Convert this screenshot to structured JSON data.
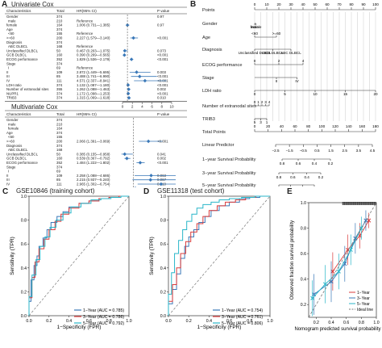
{
  "colors": {
    "blue": "#3a78b8",
    "red": "#d93b3b",
    "cyan": "#29b6c9",
    "grey": "#777777",
    "dash": "#9aa0a6"
  },
  "panels": {
    "A": {
      "letter": "A",
      "univariate": {
        "title": "Univariate Cox",
        "headers": [
          "Characteristics",
          "Total",
          "HR(95% CI)",
          "P value"
        ],
        "rows": [
          [
            "Gender",
            "374",
            "",
            "0.97"
          ],
          [
            "male",
            "210",
            "Reference",
            ""
          ],
          [
            "female",
            "164",
            "1.006 (0.731—1.385)",
            "0.97"
          ],
          [
            "Age",
            "374",
            "",
            ""
          ],
          [
            "<60",
            "155",
            "Reference",
            ""
          ],
          [
            ">=60",
            "200",
            "2.227 (1.579—3.140)",
            "<0.001"
          ],
          [
            "Diagnosis",
            "374",
            "",
            ""
          ],
          [
            "ABC DLBCL",
            "168",
            "Reference",
            ""
          ],
          [
            "Unclassified DLBCL",
            "50",
            "0.467 (0.203—1.075)",
            "0.073"
          ],
          [
            "GCB DLBCL",
            "160",
            "0.390 (0.269—0.565)",
            "<0.001"
          ],
          [
            "ECOG performance",
            "352",
            "1.829 (1.536—2.179)",
            "<0.001"
          ],
          [
            "Stage",
            "374",
            "",
            ""
          ],
          [
            "I",
            "69",
            "Reference",
            ""
          ],
          [
            "II",
            "109",
            "2.872 (1.449—5.695)",
            "0.003"
          ],
          [
            "III",
            "85",
            "3.488 (1.741—6.990)",
            "<0.001"
          ],
          [
            "IV",
            "111",
            "4.571 (2.337—8.941)",
            "<0.001"
          ],
          [
            "LDH ratio",
            "374",
            "1.132 (1.087—1.180)",
            "<0.001"
          ],
          [
            "Number of extranodal sites",
            "355",
            "1.262 (1.088—1.463)",
            "0.002"
          ],
          [
            "NUPR1",
            "374",
            "1.172 (1.098—1.253)",
            "<0.001"
          ],
          [
            "TRIB3",
            "374",
            "1.315 (1.069—1.618)",
            "0.010"
          ]
        ],
        "axis_ticks": [
          "0",
          "2",
          "4",
          "6",
          "8",
          "10"
        ]
      },
      "multivariate": {
        "title": "Multivariate Cox",
        "headers": [
          "Characteristics",
          "Total",
          "HR(95% CI)",
          "P value"
        ],
        "rows": [
          [
            "Gender",
            "374",
            "",
            ""
          ],
          [
            "male",
            "210",
            "",
            ""
          ],
          [
            "female",
            "164",
            "",
            ""
          ],
          [
            "Age",
            "374",
            "",
            ""
          ],
          [
            "<60",
            "155",
            "",
            ""
          ],
          [
            ">=60",
            "200",
            "2.066 (1.391—3.069)",
            "<0.001"
          ],
          [
            "Diagnosis",
            "374",
            "",
            ""
          ],
          [
            "ABC DLBCL",
            "168",
            "",
            ""
          ],
          [
            "Unclassified DLBCL",
            "50",
            "0.385 (0.155—0.958)",
            "0.041"
          ],
          [
            "GCB DLBCL",
            "160",
            "0.539 (0.367—0.792)",
            "0.002"
          ],
          [
            "ECOG performance",
            "352",
            "1.484 (1.222—1.802)",
            "<0.001"
          ],
          [
            "Stage",
            "374",
            "",
            ""
          ],
          [
            "I",
            "69",
            "",
            ""
          ],
          [
            "II",
            "109",
            "2.258 (1.088—4.686)",
            "0.063"
          ],
          [
            "III",
            "85",
            "2.215 (0.937—5.240)",
            "0.067"
          ],
          [
            "IV",
            "111",
            "2.965 (1.302—6.754)",
            "0.010"
          ],
          [
            "LDH ratio",
            "374",
            "1.138 (1.052—1.230)",
            "0.001"
          ],
          [
            "Number of extranodal sites",
            "",
            "",
            ""
          ],
          [
            "NUPR1",
            "374",
            "",
            ""
          ],
          [
            "TRIB3",
            "374",
            "",
            ""
          ]
        ],
        "axis_ticks": [
          "1",
          "2",
          "3"
        ]
      }
    },
    "B": {
      "letter": "B",
      "rows": [
        "Points",
        "Gender",
        "Age",
        "Diagnosis",
        "ECOG performance",
        "Stage",
        "LDH ratio",
        "Number of extranodal sites",
        "TRIB3",
        "Total Points",
        "Linear Predictor",
        "1−year Survival Probability",
        "3−year Survival Probability",
        "5−year Survival Probability"
      ],
      "points_ticks": [
        "0",
        "10",
        "20",
        "30",
        "40",
        "50",
        "60",
        "70",
        "80",
        "90",
        "100"
      ],
      "gender_labels": [
        "male",
        "female"
      ],
      "age_labels": [
        ">=60",
        "<60"
      ],
      "diagnosis_labels": [
        "Unclassified DLBCL",
        "GCB DLBCL",
        "ABC DLBCL"
      ],
      "ecog_labels": [
        "0",
        "2",
        "4"
      ],
      "stage_labels": [
        "II",
        "IV"
      ],
      "ldh_labels": [
        "0",
        "5",
        "10",
        "15",
        "20"
      ],
      "extranodal_labels": [
        "0",
        "2",
        "4",
        "1",
        "3"
      ],
      "trib3_labels": [
        "5",
        "3",
        "1"
      ],
      "total_ticks": [
        "0",
        "20",
        "40",
        "60",
        "80",
        "100",
        "120",
        "140",
        "160",
        "180"
      ],
      "lp_ticks": [
        "−2.5",
        "−1.5",
        "−0.5",
        "0.5",
        "1.5",
        "2.5",
        "3.5",
        "4.5"
      ],
      "y1_ticks": [
        "0.8",
        "0.6",
        "0.4",
        "0.2"
      ],
      "y3_ticks": [
        "0.8",
        "0.6",
        "0.4",
        "0.2"
      ],
      "y5_ticks": [
        "0.8",
        "0.6",
        "0.4",
        "0.2"
      ]
    },
    "C": {
      "letter": "C",
      "title": "GSE10846 (training cohort)",
      "xlabel": "1−Specificity (FPR)",
      "ylabel": "Sensitivity (TPR)",
      "ticks": [
        "0.0",
        "0.2",
        "0.4",
        "0.6",
        "0.8",
        "1.0"
      ],
      "legend": [
        "1−Year (AUC = 0.785)",
        "3−Year (AUC = 0.786)",
        "5−Year (AUC = 0.792)"
      ]
    },
    "D": {
      "letter": "D",
      "title": "GSE11318 (test cohort)",
      "xlabel": "1−Specificity (FPR)",
      "ylabel": "Sensitivity (TPR)",
      "ticks": [
        "0.0",
        "0.2",
        "0.4",
        "0.6",
        "0.8",
        "1.0"
      ],
      "legend": [
        "1−Year (AUC = 0.754)",
        "3−Year (AUC = 0.761)",
        "5−Year (AUC = 0.806)"
      ]
    },
    "E": {
      "letter": "E",
      "xlabel": "Nomogram predicted survival probability",
      "ylabel": "Observed fraction survival probability",
      "xticks": [
        "0.2",
        "0.4",
        "0.6",
        "0.8",
        "1.0"
      ],
      "yticks": [
        "0.2",
        "0.4",
        "0.6",
        "0.8",
        "1.0"
      ],
      "legend": [
        "1−Year",
        "3−Year",
        "5−Year",
        "Ideal line"
      ]
    }
  },
  "chart_data": [
    {
      "type": "forest",
      "title": "Univariate Cox",
      "xlim": [
        0,
        10
      ],
      "estimates": [
        {
          "label": "female",
          "hr": 1.006,
          "lo": 0.731,
          "hi": 1.385
        },
        {
          "label": ">=60",
          "hr": 2.227,
          "lo": 1.579,
          "hi": 3.14
        },
        {
          "label": "Unclassified DLBCL",
          "hr": 0.467,
          "lo": 0.203,
          "hi": 1.075
        },
        {
          "label": "GCB DLBCL",
          "hr": 0.39,
          "lo": 0.269,
          "hi": 0.565
        },
        {
          "label": "ECOG performance",
          "hr": 1.829,
          "lo": 1.536,
          "hi": 2.179
        },
        {
          "label": "II",
          "hr": 2.872,
          "lo": 1.449,
          "hi": 5.695
        },
        {
          "label": "III",
          "hr": 3.488,
          "lo": 1.741,
          "hi": 6.99
        },
        {
          "label": "IV",
          "hr": 4.571,
          "lo": 2.337,
          "hi": 8.941
        },
        {
          "label": "LDH ratio",
          "hr": 1.132,
          "lo": 1.087,
          "hi": 1.18
        },
        {
          "label": "Number of extranodal sites",
          "hr": 1.262,
          "lo": 1.088,
          "hi": 1.463
        },
        {
          "label": "NUPR1",
          "hr": 1.172,
          "lo": 1.098,
          "hi": 1.253
        },
        {
          "label": "TRIB3",
          "hr": 1.315,
          "lo": 1.069,
          "hi": 1.618
        }
      ]
    },
    {
      "type": "forest",
      "title": "Multivariate Cox",
      "xlim": [
        0,
        4
      ],
      "estimates": [
        {
          "label": ">=60",
          "hr": 2.066,
          "lo": 1.391,
          "hi": 3.069
        },
        {
          "label": "Unclassified DLBCL",
          "hr": 0.385,
          "lo": 0.155,
          "hi": 0.958
        },
        {
          "label": "GCB DLBCL",
          "hr": 0.539,
          "lo": 0.367,
          "hi": 0.792
        },
        {
          "label": "ECOG performance",
          "hr": 1.484,
          "lo": 1.222,
          "hi": 1.802
        },
        {
          "label": "II",
          "hr": 2.258,
          "lo": 1.088,
          "hi": 4.686
        },
        {
          "label": "III",
          "hr": 2.215,
          "lo": 0.937,
          "hi": 5.24
        },
        {
          "label": "IV",
          "hr": 2.965,
          "lo": 1.302,
          "hi": 6.754
        },
        {
          "label": "LDH ratio",
          "hr": 1.138,
          "lo": 1.052,
          "hi": 1.23
        }
      ]
    },
    {
      "type": "line",
      "title": "GSE10846 (training cohort)",
      "xlabel": "1−Specificity (FPR)",
      "ylabel": "Sensitivity (TPR)",
      "xlim": [
        0,
        1
      ],
      "ylim": [
        0,
        1
      ],
      "series": [
        {
          "name": "1−Year (AUC = 0.785)",
          "x": [
            0,
            0.02,
            0.05,
            0.08,
            0.1,
            0.14,
            0.18,
            0.22,
            0.28,
            0.34,
            0.4,
            0.5,
            0.6,
            0.7,
            0.8,
            0.9,
            1.0
          ],
          "y": [
            0,
            0.12,
            0.3,
            0.42,
            0.5,
            0.58,
            0.65,
            0.72,
            0.78,
            0.83,
            0.87,
            0.91,
            0.94,
            0.96,
            0.98,
            0.99,
            1.0
          ]
        },
        {
          "name": "3−Year (AUC = 0.786)",
          "x": [
            0,
            0.03,
            0.06,
            0.1,
            0.15,
            0.2,
            0.26,
            0.32,
            0.4,
            0.5,
            0.6,
            0.7,
            0.8,
            0.9,
            1.0
          ],
          "y": [
            0,
            0.15,
            0.32,
            0.45,
            0.56,
            0.64,
            0.72,
            0.79,
            0.85,
            0.9,
            0.94,
            0.96,
            0.98,
            0.99,
            1.0
          ]
        },
        {
          "name": "5−Year (AUC = 0.792)",
          "x": [
            0,
            0.03,
            0.07,
            0.11,
            0.16,
            0.21,
            0.27,
            0.34,
            0.42,
            0.52,
            0.62,
            0.72,
            0.82,
            0.92,
            1.0
          ],
          "y": [
            0,
            0.16,
            0.34,
            0.47,
            0.58,
            0.66,
            0.74,
            0.8,
            0.86,
            0.91,
            0.94,
            0.97,
            0.98,
            0.99,
            1.0
          ]
        }
      ],
      "legend_position": "bottom-right"
    },
    {
      "type": "line",
      "title": "GSE11318 (test cohort)",
      "xlabel": "1−Specificity (FPR)",
      "ylabel": "Sensitivity (TPR)",
      "xlim": [
        0,
        1
      ],
      "ylim": [
        0,
        1
      ],
      "series": [
        {
          "name": "1−Year (AUC = 0.754)",
          "x": [
            0,
            0.04,
            0.08,
            0.12,
            0.16,
            0.2,
            0.25,
            0.3,
            0.36,
            0.42,
            0.5,
            0.6,
            0.7,
            0.8,
            0.9,
            1.0
          ],
          "y": [
            0,
            0.1,
            0.22,
            0.35,
            0.48,
            0.58,
            0.66,
            0.72,
            0.78,
            0.83,
            0.88,
            0.92,
            0.95,
            0.98,
            0.99,
            1.0
          ]
        },
        {
          "name": "3−Year (AUC = 0.761)",
          "x": [
            0,
            0.04,
            0.08,
            0.12,
            0.17,
            0.22,
            0.28,
            0.34,
            0.4,
            0.48,
            0.56,
            0.66,
            0.76,
            0.86,
            1.0
          ],
          "y": [
            0,
            0.12,
            0.26,
            0.4,
            0.52,
            0.62,
            0.7,
            0.77,
            0.83,
            0.88,
            0.92,
            0.95,
            0.97,
            0.99,
            1.0
          ]
        },
        {
          "name": "5−Year (AUC = 0.806)",
          "x": [
            0,
            0.03,
            0.06,
            0.1,
            0.14,
            0.18,
            0.23,
            0.28,
            0.34,
            0.42,
            0.5,
            0.6,
            0.72,
            0.85,
            1.0
          ],
          "y": [
            0,
            0.18,
            0.36,
            0.52,
            0.63,
            0.72,
            0.79,
            0.85,
            0.9,
            0.93,
            0.95,
            0.97,
            0.98,
            0.99,
            1.0
          ]
        }
      ],
      "legend_position": "bottom-right"
    },
    {
      "type": "scatter",
      "xlabel": "Nomogram predicted survival probability",
      "ylabel": "Observed fraction survival probability",
      "xlim": [
        0.1,
        1.0
      ],
      "ylim": [
        0.1,
        1.0
      ],
      "series": [
        {
          "name": "1−Year",
          "x": [
            0.42,
            0.62,
            0.78,
            0.9
          ],
          "y": [
            0.46,
            0.63,
            0.74,
            0.86
          ],
          "err": [
            0.15,
            0.12,
            0.1,
            0.06
          ]
        },
        {
          "name": "3−Year",
          "x": [
            0.17,
            0.4,
            0.58,
            0.72,
            0.86
          ],
          "y": [
            0.28,
            0.38,
            0.52,
            0.72,
            0.86
          ],
          "err": [
            0.16,
            0.16,
            0.14,
            0.12,
            0.08
          ]
        },
        {
          "name": "5−Year",
          "x": [
            0.15,
            0.32,
            0.5,
            0.66,
            0.8
          ],
          "y": [
            0.25,
            0.36,
            0.46,
            0.63,
            0.8
          ],
          "err": [
            0.14,
            0.15,
            0.14,
            0.12,
            0.09
          ]
        },
        {
          "name": "Ideal line",
          "x": [
            0.1,
            1.0
          ],
          "y": [
            0.1,
            1.0
          ]
        }
      ],
      "legend_position": "bottom-right"
    }
  ]
}
